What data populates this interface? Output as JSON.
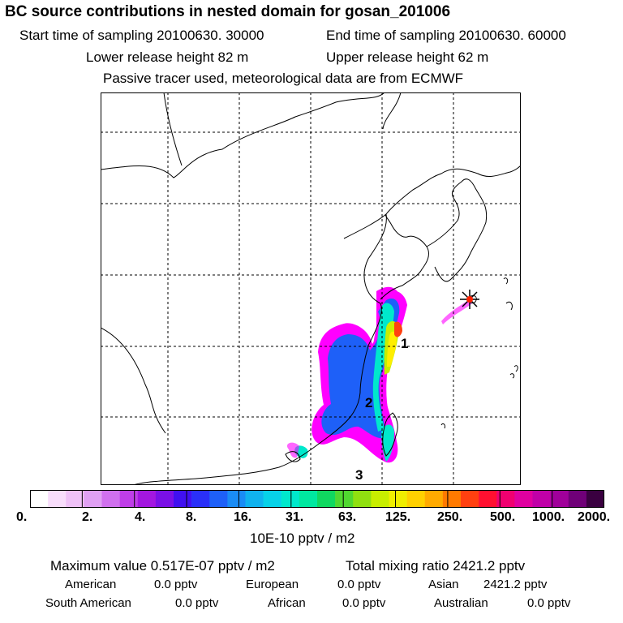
{
  "header": {
    "title": "BC  source contributions in nested domain for gosan_201006",
    "start_time": "Start time of sampling 20100630. 30000",
    "end_time": "End time of sampling 20100630. 60000",
    "lower_release": "Lower release height   82 m",
    "upper_release": "Upper release height   62 m",
    "tracer_note": "Passive tracer used, meteorological data are from ECMWF"
  },
  "map": {
    "markers": [
      {
        "label": "1"
      },
      {
        "label": "2"
      },
      {
        "label": "3"
      }
    ],
    "receptor_symbol": "star-icon",
    "plume_colors": [
      "#ff00ff",
      "#0066ff",
      "#00cccc",
      "#00ee99",
      "#ccff00",
      "#ffee00",
      "#ffaa00",
      "#ff3300"
    ]
  },
  "colorbar": {
    "colors": [
      "#ffffff",
      "#f8ddfb",
      "#efc1f7",
      "#e0a0f3",
      "#d070ee",
      "#bf3ee8",
      "#a317e0",
      "#7a10e6",
      "#4010f0",
      "#2a30f8",
      "#1e60f8",
      "#1a8cf5",
      "#10b2ee",
      "#07d2e8",
      "#00e8cc",
      "#00e8a0",
      "#10d860",
      "#50d830",
      "#90e010",
      "#c8ee00",
      "#f0ee00",
      "#ffd000",
      "#ffaa00",
      "#ff7a00",
      "#ff4010",
      "#ff1030",
      "#f00070",
      "#e000a0",
      "#c000a8",
      "#a0009a",
      "#700078",
      "#3a0040"
    ],
    "tick_labels": [
      "0.",
      "2.",
      "4.",
      "8.",
      "16.",
      "31.",
      "63.",
      "125.",
      "250.",
      "500.",
      "1000.",
      "2000."
    ],
    "units": "10E-10 pptv / m2"
  },
  "summary": {
    "max_value": "Maximum value  0.517E-07 pptv / m2",
    "total_mixing": "Total mixing ratio     2421.2 pptv",
    "american_label": "American",
    "american_value": "0.0 pptv",
    "european_label": "European",
    "european_value": "0.0 pptv",
    "asian_label": "Asian",
    "asian_value": "2421.2 pptv",
    "south_american_label": "South American",
    "south_american_value": "0.0 pptv",
    "african_label": "African",
    "african_value": "0.0 pptv",
    "australian_label": "Australian",
    "australian_value": "0.0 pptv"
  }
}
